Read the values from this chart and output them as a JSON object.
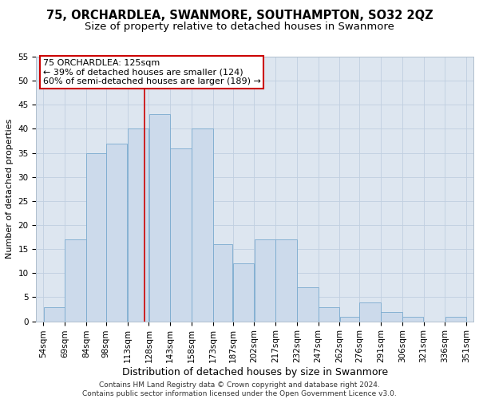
{
  "title": "75, ORCHARDLEA, SWANMORE, SOUTHAMPTON, SO32 2QZ",
  "subtitle": "Size of property relative to detached houses in Swanmore",
  "xlabel": "Distribution of detached houses by size in Swanmore",
  "ylabel": "Number of detached properties",
  "bar_values": [
    3,
    17,
    35,
    37,
    40,
    43,
    36,
    40,
    16,
    12,
    17,
    17,
    7,
    3,
    1,
    4,
    2,
    1,
    0,
    1
  ],
  "bar_labels": [
    "54sqm",
    "69sqm",
    "84sqm",
    "98sqm",
    "113sqm",
    "128sqm",
    "143sqm",
    "158sqm",
    "173sqm",
    "187sqm",
    "202sqm",
    "217sqm",
    "232sqm",
    "247sqm",
    "262sqm",
    "276sqm",
    "291sqm",
    "306sqm",
    "321sqm",
    "336sqm",
    "351sqm"
  ],
  "bar_color": "#ccdaeb",
  "bar_edge_color": "#7aaacf",
  "property_line_x": 125,
  "property_label": "75 ORCHARDLEA: 125sqm",
  "annotation_line1": "← 39% of detached houses are smaller (124)",
  "annotation_line2": "60% of semi-detached houses are larger (189) →",
  "annotation_box_color": "#ffffff",
  "annotation_box_edge": "#cc0000",
  "vline_color": "#cc0000",
  "grid_color": "#c0cfe0",
  "background_color": "#dde6f0",
  "footer_line1": "Contains HM Land Registry data © Crown copyright and database right 2024.",
  "footer_line2": "Contains public sector information licensed under the Open Government Licence v3.0.",
  "ylim": [
    0,
    55
  ],
  "yticks": [
    0,
    5,
    10,
    15,
    20,
    25,
    30,
    35,
    40,
    45,
    50,
    55
  ],
  "title_fontsize": 10.5,
  "subtitle_fontsize": 9.5,
  "xlabel_fontsize": 9,
  "ylabel_fontsize": 8,
  "tick_fontsize": 7.5,
  "annotation_fontsize": 8,
  "footer_fontsize": 6.5
}
